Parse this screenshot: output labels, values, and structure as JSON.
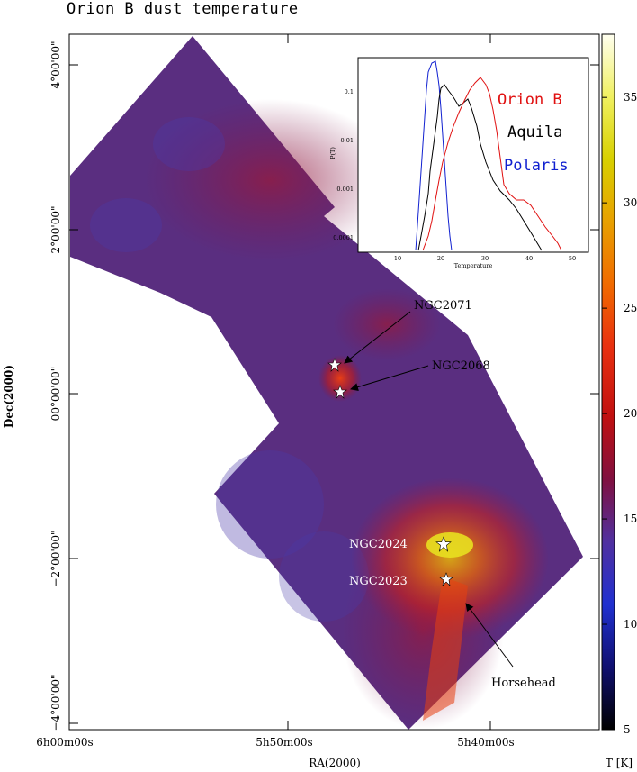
{
  "title": "Orion B dust temperature",
  "axes": {
    "xlabel": "RA(2000)",
    "ylabel": "Dec(2000)",
    "xticks": [
      "6h00m00s",
      "5h50m00s",
      "5h40m00s"
    ],
    "yticks": [
      "4°00'00\"",
      "2°00'00\"",
      "00°00'00\"",
      "−2°00'00\"",
      "−4°00'00\""
    ]
  },
  "colorbar": {
    "label": "T [K]",
    "ticks": [
      "5",
      "10",
      "15",
      "20",
      "25",
      "30",
      "35"
    ],
    "range": [
      5,
      38
    ],
    "colors": [
      "#000000",
      "#101070",
      "#2030d0",
      "#5030a0",
      "#801040",
      "#c01010",
      "#e83010",
      "#f06a00",
      "#e8a000",
      "#d8d000",
      "#f0f060",
      "#fffff0"
    ]
  },
  "annotations": [
    {
      "id": "ngc2071",
      "text": "NGC2071"
    },
    {
      "id": "ngc2068",
      "text": "NGC2068"
    },
    {
      "id": "ngc2024",
      "text": "NGC2024"
    },
    {
      "id": "ngc2023",
      "text": "NGC2023"
    },
    {
      "id": "horsehead",
      "text": "Horsehead"
    }
  ],
  "inset": {
    "xlabel": "Temperature",
    "ylabel": "P(T)",
    "xticks": [
      "10",
      "20",
      "30",
      "40",
      "50"
    ],
    "yticks": [
      "0.1",
      "0.01",
      "0.001",
      "0.0001"
    ],
    "legend": [
      {
        "name": "Orion B",
        "color": "#e01010"
      },
      {
        "name": "Aquila",
        "color": "#000000"
      },
      {
        "name": "Polaris",
        "color": "#1020d0"
      }
    ]
  }
}
